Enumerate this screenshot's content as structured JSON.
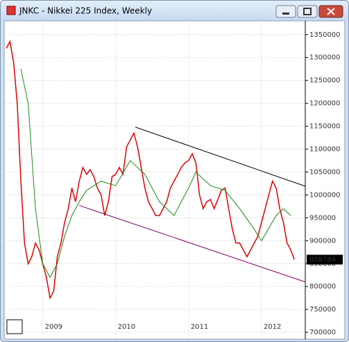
{
  "window_title": "JNKC - Nikkei 225 Index, Weekly",
  "chart_data": {
    "type": "line",
    "xlim": [
      2008.49,
      2012.6
    ],
    "xticks": [
      2009,
      2010,
      2011,
      2012
    ],
    "ylim": [
      685000,
      1380000
    ],
    "yticks": [
      700000,
      750000,
      800000,
      850000,
      900000,
      950000,
      1000000,
      1050000,
      1100000,
      1150000,
      1200000,
      1250000,
      1300000,
      1350000
    ],
    "grid": true,
    "series": [
      {
        "color": "#e00000",
        "x": [
          2008.5,
          2008.55,
          2008.6,
          2008.65,
          2008.7,
          2008.75,
          2008.8,
          2008.85,
          2008.9,
          2008.95,
          2009.0,
          2009.05,
          2009.1,
          2009.15,
          2009.2,
          2009.25,
          2009.3,
          2009.35,
          2009.4,
          2009.45,
          2009.5,
          2009.55,
          2009.6,
          2009.65,
          2009.7,
          2009.75,
          2009.8,
          2009.85,
          2009.9,
          2009.95,
          2010.0,
          2010.05,
          2010.1,
          2010.15,
          2010.2,
          2010.25,
          2010.3,
          2010.35,
          2010.4,
          2010.45,
          2010.5,
          2010.55,
          2010.6,
          2010.65,
          2010.7,
          2010.75,
          2010.8,
          2010.85,
          2010.9,
          2010.95,
          2011.0,
          2011.05,
          2011.1,
          2011.15,
          2011.2,
          2011.25,
          2011.3,
          2011.35,
          2011.4,
          2011.45,
          2011.5,
          2011.55,
          2011.6,
          2011.65,
          2011.7,
          2011.75,
          2011.8,
          2011.85,
          2011.9,
          2011.95,
          2012.0,
          2012.05,
          2012.1,
          2012.15,
          2012.2,
          2012.25,
          2012.3,
          2012.35,
          2012.4,
          2012.45
        ],
        "values": [
          1320000,
          1335000,
          1290000,
          1200000,
          1030000,
          895000,
          850000,
          865000,
          895000,
          880000,
          850000,
          820000,
          775000,
          790000,
          865000,
          895000,
          940000,
          970000,
          1015000,
          985000,
          1030000,
          1060000,
          1045000,
          1055000,
          1040000,
          1015000,
          1000000,
          955000,
          985000,
          1040000,
          1045000,
          1060000,
          1045000,
          1105000,
          1120000,
          1135000,
          1105000,
          1060000,
          1015000,
          985000,
          970000,
          955000,
          955000,
          970000,
          985000,
          1015000,
          1030000,
          1045000,
          1060000,
          1070000,
          1075000,
          1090000,
          1070000,
          1000000,
          970000,
          985000,
          990000,
          970000,
          990000,
          1010000,
          1015000,
          970000,
          925000,
          895000,
          895000,
          880000,
          865000,
          880000,
          895000,
          910000,
          940000,
          970000,
          1000000,
          1030000,
          1015000,
          970000,
          940000,
          895000,
          880000,
          858784
        ]
      },
      {
        "color": "#1a8a1a",
        "x": [
          2008.7,
          2008.8,
          2008.9,
          2009.0,
          2009.1,
          2009.2,
          2009.3,
          2009.4,
          2009.5,
          2009.6,
          2009.8,
          2010.0,
          2010.2,
          2010.4,
          2010.6,
          2010.8,
          2011.0,
          2011.1,
          2011.3,
          2011.5,
          2011.7,
          2011.9,
          2012.0,
          2012.2,
          2012.3,
          2012.4
        ],
        "values": [
          1275000,
          1200000,
          970000,
          850000,
          820000,
          850000,
          910000,
          955000,
          985000,
          1010000,
          1030000,
          1020000,
          1075000,
          1045000,
          985000,
          955000,
          1015000,
          1050000,
          1020000,
          1010000,
          970000,
          925000,
          900000,
          955000,
          970000,
          955000
        ]
      }
    ],
    "trendlines": [
      {
        "color": "#000000",
        "x": [
          2010.27,
          2012.6
        ],
        "y": [
          1148000,
          1019000
        ]
      },
      {
        "color": "#800060",
        "x": [
          2009.5,
          2012.6
        ],
        "y": [
          977000,
          810000
        ]
      }
    ],
    "last_value": 858784
  }
}
